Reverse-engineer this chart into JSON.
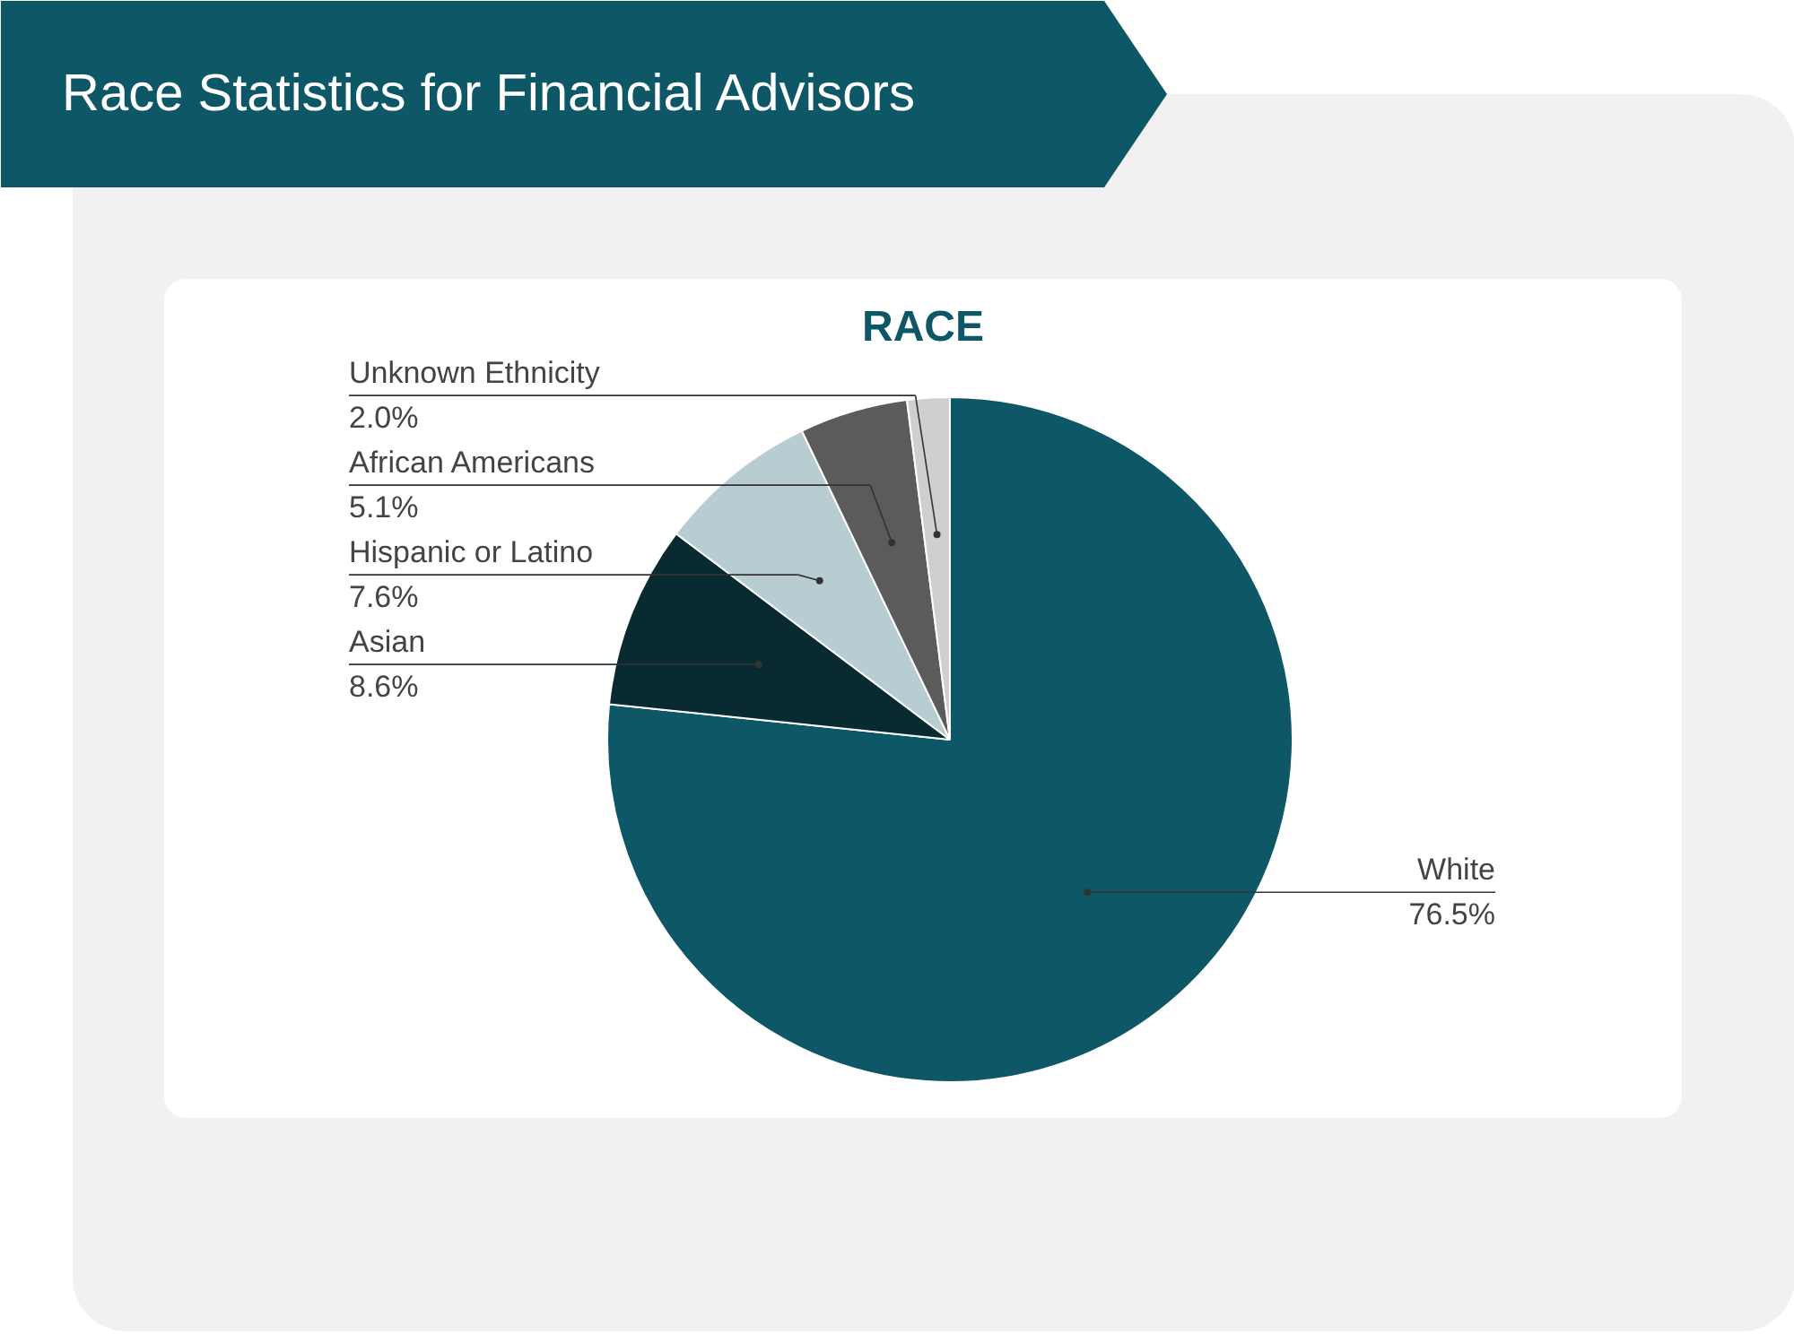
{
  "chart_data": {
    "type": "pie",
    "title": "Race Statistics for Financial Advisors",
    "subtitle": "RACE",
    "categories": [
      "White",
      "Asian",
      "Hispanic or Latino",
      "African Americans",
      "Unknown Ethnicity"
    ],
    "values": [
      76.5,
      8.6,
      7.6,
      5.1,
      2.0
    ],
    "value_labels": [
      "76.5%",
      "8.6%",
      "7.6%",
      "5.1%",
      "2.0%"
    ],
    "colors": [
      "#0d5766",
      "#082a30",
      "#b8cdd1",
      "#5b5b5b",
      "#cfcfcf"
    ]
  }
}
